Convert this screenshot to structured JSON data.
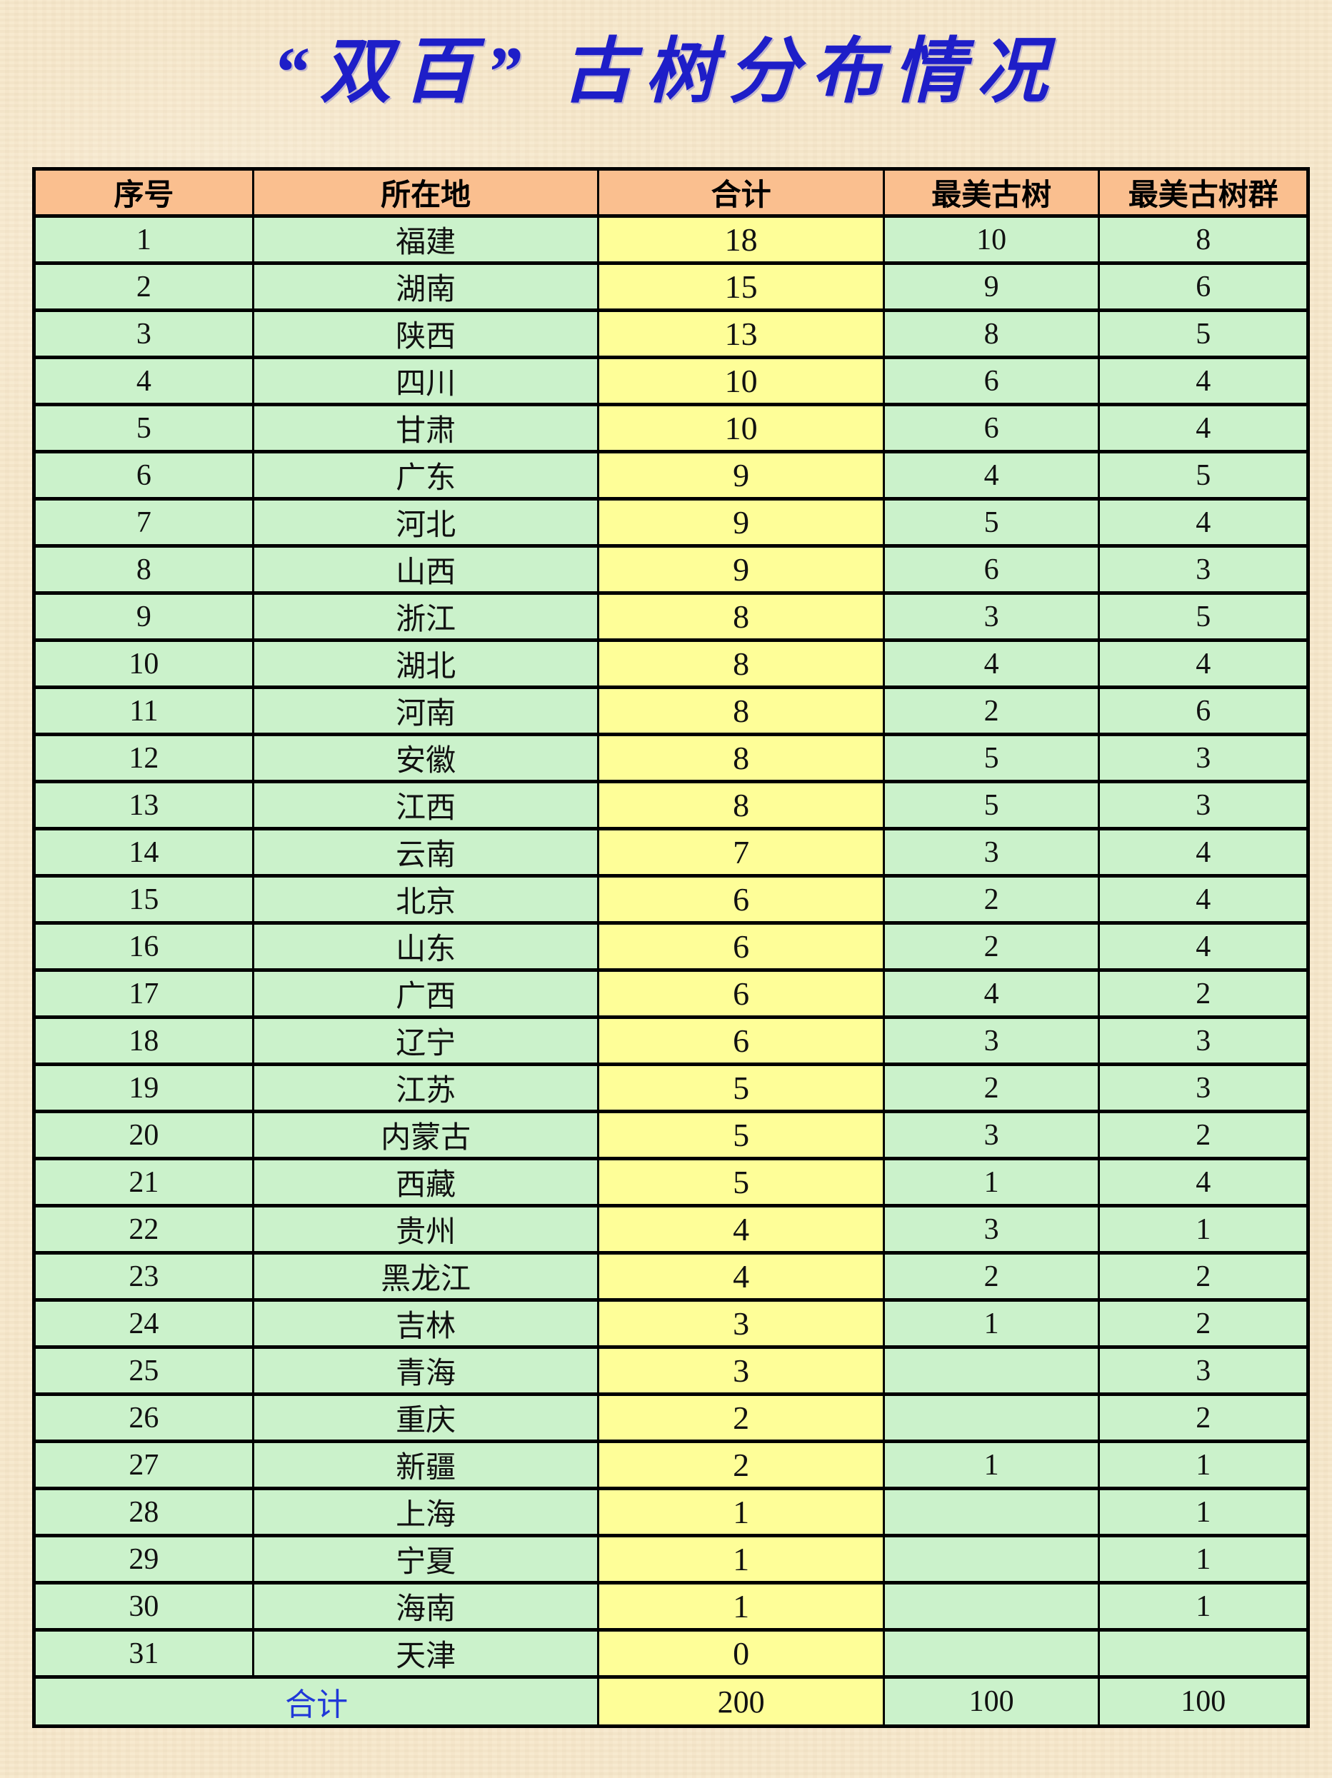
{
  "page": {
    "title": "“双百” 古树分布情况"
  },
  "colors": {
    "page_bg": "#F7E8CB",
    "header_bg": "#FABF8F",
    "row_bg": "#CBF2CB",
    "total_col_bg": "#FEFE98",
    "border": "#000000",
    "title_blue": "#1E1EC8",
    "total_label_blue": "#2038D8"
  },
  "table": {
    "headers": [
      "序号",
      "所在地",
      "合计",
      "最美古树",
      "最美古树群"
    ],
    "rows": [
      [
        "1",
        "福建",
        "18",
        "10",
        "8"
      ],
      [
        "2",
        "湖南",
        "15",
        "9",
        "6"
      ],
      [
        "3",
        "陕西",
        "13",
        "8",
        "5"
      ],
      [
        "4",
        "四川",
        "10",
        "6",
        "4"
      ],
      [
        "5",
        "甘肃",
        "10",
        "6",
        "4"
      ],
      [
        "6",
        "广东",
        "9",
        "4",
        "5"
      ],
      [
        "7",
        "河北",
        "9",
        "5",
        "4"
      ],
      [
        "8",
        "山西",
        "9",
        "6",
        "3"
      ],
      [
        "9",
        "浙江",
        "8",
        "3",
        "5"
      ],
      [
        "10",
        "湖北",
        "8",
        "4",
        "4"
      ],
      [
        "11",
        "河南",
        "8",
        "2",
        "6"
      ],
      [
        "12",
        "安徽",
        "8",
        "5",
        "3"
      ],
      [
        "13",
        "江西",
        "8",
        "5",
        "3"
      ],
      [
        "14",
        "云南",
        "7",
        "3",
        "4"
      ],
      [
        "15",
        "北京",
        "6",
        "2",
        "4"
      ],
      [
        "16",
        "山东",
        "6",
        "2",
        "4"
      ],
      [
        "17",
        "广西",
        "6",
        "4",
        "2"
      ],
      [
        "18",
        "辽宁",
        "6",
        "3",
        "3"
      ],
      [
        "19",
        "江苏",
        "5",
        "2",
        "3"
      ],
      [
        "20",
        "内蒙古",
        "5",
        "3",
        "2"
      ],
      [
        "21",
        "西藏",
        "5",
        "1",
        "4"
      ],
      [
        "22",
        "贵州",
        "4",
        "3",
        "1"
      ],
      [
        "23",
        "黑龙江",
        "4",
        "2",
        "2"
      ],
      [
        "24",
        "吉林",
        "3",
        "1",
        "2"
      ],
      [
        "25",
        "青海",
        "3",
        "",
        "3"
      ],
      [
        "26",
        "重庆",
        "2",
        "",
        "2"
      ],
      [
        "27",
        "新疆",
        "2",
        "1",
        "1"
      ],
      [
        "28",
        "上海",
        "1",
        "",
        "1"
      ],
      [
        "29",
        "宁夏",
        "1",
        "",
        "1"
      ],
      [
        "30",
        "海南",
        "1",
        "",
        "1"
      ],
      [
        "31",
        "天津",
        "0",
        "",
        ""
      ]
    ],
    "total_row": {
      "label": "合计",
      "total": "200",
      "best_tree": "100",
      "best_group": "100"
    }
  }
}
